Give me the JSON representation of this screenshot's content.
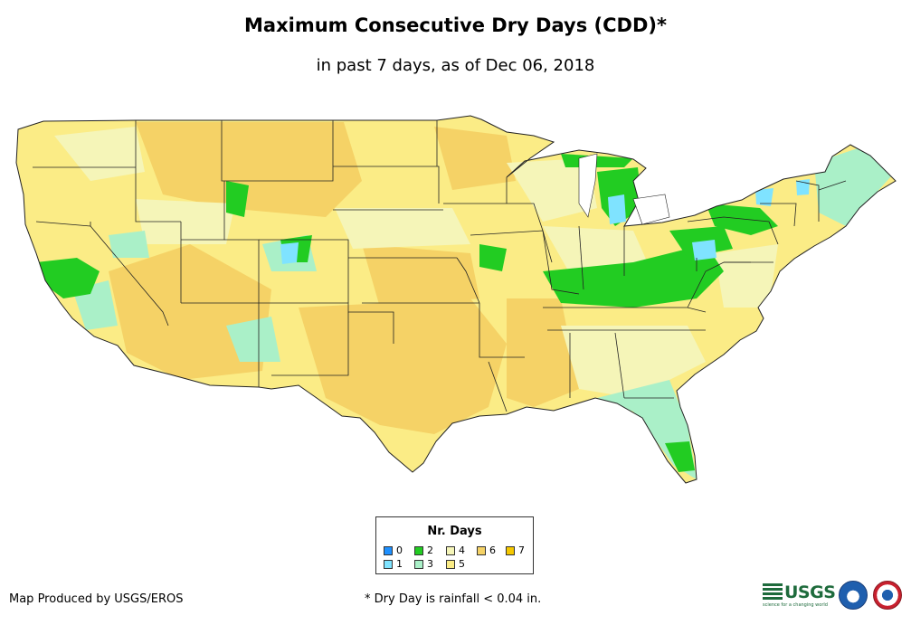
{
  "header": {
    "title": "Maximum Consecutive Dry Days (CDD)*",
    "subtitle": "in past 7 days, as of Dec 06, 2018"
  },
  "legend": {
    "title": "Nr. Days",
    "items": [
      {
        "label": "0",
        "color": "#1e90ff"
      },
      {
        "label": "1",
        "color": "#7fe3ff"
      },
      {
        "label": "2",
        "color": "#22cc22"
      },
      {
        "label": "3",
        "color": "#aaf0c8"
      },
      {
        "label": "4",
        "color": "#f5f5b8"
      },
      {
        "label": "5",
        "color": "#fbec86"
      },
      {
        "label": "6",
        "color": "#f5d266"
      },
      {
        "label": "7",
        "color": "#f5c800"
      }
    ]
  },
  "footer": {
    "credit": "Map Produced by USGS/EROS",
    "footnote": "* Dry Day is rainfall < 0.04 in.",
    "logos": {
      "usgs": "USGS",
      "usgs_tagline": "science for a changing world",
      "noaa": "noaa-logo",
      "nws": "nws-logo"
    }
  },
  "colors": {
    "state_border": "#222222",
    "background": "#ffffff"
  }
}
